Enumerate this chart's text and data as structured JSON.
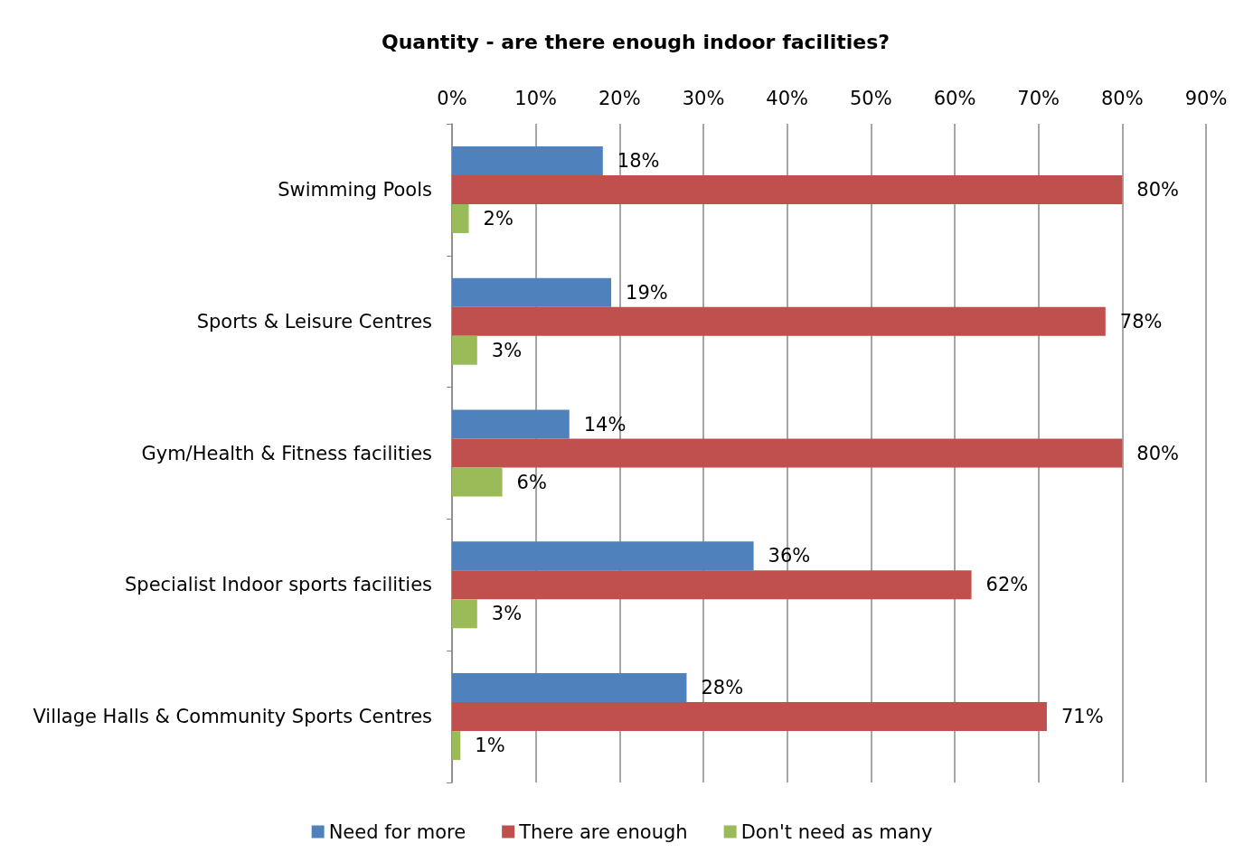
{
  "chart_data": {
    "type": "bar",
    "orientation": "horizontal",
    "title": "Quantity - are there enough indoor facilities?",
    "categories": [
      "Swimming Pools",
      "Sports & Leisure Centres",
      "Gym/Health & Fitness facilities",
      "Specialist Indoor sports facilities",
      "Village Halls & Community Sports Centres"
    ],
    "series": [
      {
        "name": "Need for more",
        "color": "#4f81bd",
        "values": [
          18,
          19,
          14,
          36,
          28
        ],
        "value_labels": [
          "18%",
          "19%",
          "14%",
          "36%",
          "28%"
        ]
      },
      {
        "name": "There are enough",
        "color": "#c0504d",
        "values": [
          80,
          78,
          80,
          62,
          71
        ],
        "value_labels": [
          "80%",
          "78%",
          "80%",
          "62%",
          "71%"
        ]
      },
      {
        "name": "Don't need as many",
        "color": "#9bbb59",
        "values": [
          2,
          3,
          6,
          3,
          1
        ],
        "value_labels": [
          "2%",
          "3%",
          "6%",
          "3%",
          "1%"
        ]
      }
    ],
    "xlim": [
      0,
      90
    ],
    "xticks": [
      {
        "value": 0,
        "label": "0%"
      },
      {
        "value": 10,
        "label": "10%"
      },
      {
        "value": 20,
        "label": "20%"
      },
      {
        "value": 30,
        "label": "30%"
      },
      {
        "value": 40,
        "label": "40%"
      },
      {
        "value": 50,
        "label": "50%"
      },
      {
        "value": 60,
        "label": "60%"
      },
      {
        "value": 70,
        "label": "70%"
      },
      {
        "value": 80,
        "label": "80%"
      },
      {
        "value": 90,
        "label": "90%"
      }
    ],
    "grid": "x",
    "legend": "bottom"
  }
}
